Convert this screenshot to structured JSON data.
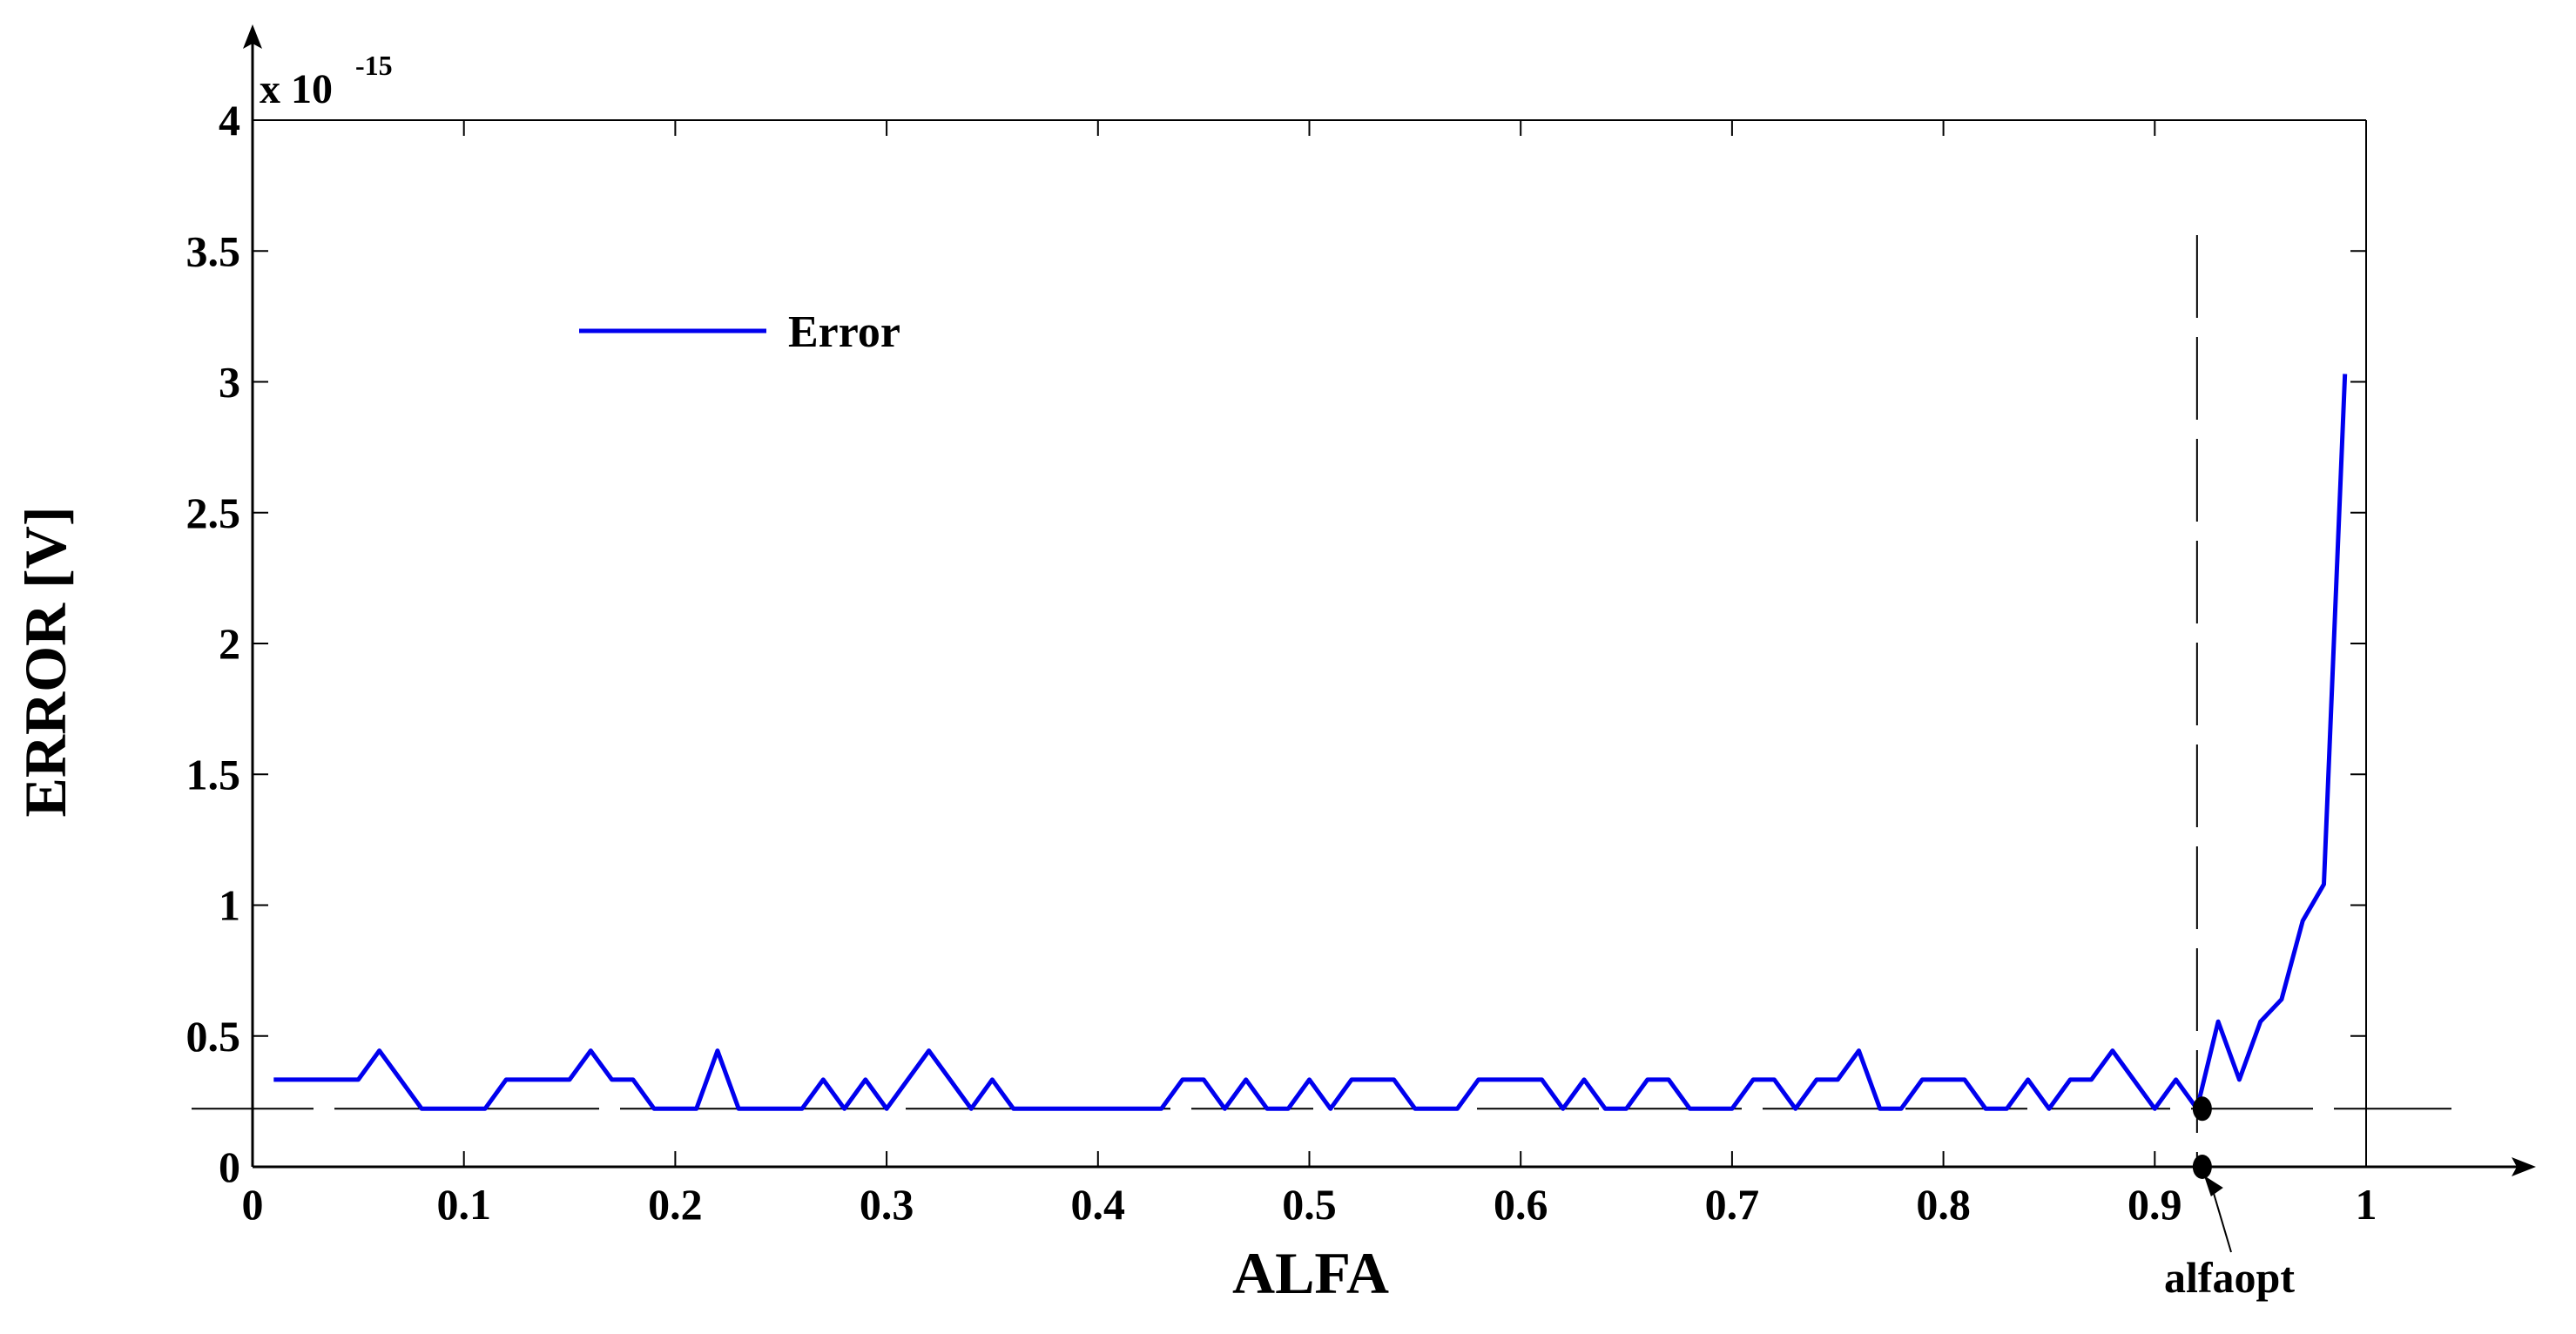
{
  "chart_data": {
    "type": "line",
    "xlabel": "ALFA",
    "ylabel": "ERROR [V]",
    "xlim": [
      0,
      1
    ],
    "ylim": [
      0,
      4
    ],
    "y_multiplier_label": "x 10",
    "y_multiplier_exponent": "-15",
    "xticks": [
      0,
      0.1,
      0.2,
      0.3,
      0.4,
      0.5,
      0.6,
      0.7,
      0.8,
      0.9,
      1
    ],
    "xtick_labels": [
      "0",
      "0.1",
      "0.2",
      "0.3",
      "0.4",
      "0.5",
      "0.6",
      "0.7",
      "0.8",
      "0.9",
      "1"
    ],
    "yticks": [
      0,
      0.5,
      1,
      1.5,
      2,
      2.5,
      3,
      3.5,
      4
    ],
    "ytick_labels": [
      "0",
      "0.5",
      "1",
      "1.5",
      "2",
      "2.5",
      "3",
      "3.5",
      "4"
    ],
    "legend_position": "upper-left",
    "grid": false,
    "series": [
      {
        "name": "Error",
        "color": "#0000ee",
        "x": [
          0.01,
          0.02,
          0.03,
          0.04,
          0.05,
          0.06,
          0.07,
          0.08,
          0.09,
          0.1,
          0.11,
          0.12,
          0.13,
          0.14,
          0.15,
          0.16,
          0.17,
          0.18,
          0.19,
          0.2,
          0.21,
          0.22,
          0.23,
          0.24,
          0.25,
          0.26,
          0.27,
          0.28,
          0.29,
          0.3,
          0.31,
          0.32,
          0.33,
          0.34,
          0.35,
          0.36,
          0.37,
          0.38,
          0.39,
          0.4,
          0.41,
          0.42,
          0.43,
          0.44,
          0.45,
          0.46,
          0.47,
          0.48,
          0.49,
          0.5,
          0.51,
          0.52,
          0.53,
          0.54,
          0.55,
          0.56,
          0.57,
          0.58,
          0.59,
          0.6,
          0.61,
          0.62,
          0.63,
          0.64,
          0.65,
          0.66,
          0.67,
          0.68,
          0.69,
          0.7,
          0.71,
          0.72,
          0.73,
          0.74,
          0.75,
          0.76,
          0.77,
          0.78,
          0.79,
          0.8,
          0.81,
          0.82,
          0.83,
          0.84,
          0.85,
          0.86,
          0.87,
          0.88,
          0.89,
          0.9,
          0.91,
          0.92,
          0.93,
          0.94,
          0.95,
          0.96,
          0.97,
          0.98,
          0.99
        ],
        "y": [
          0.333,
          0.333,
          0.333,
          0.333,
          0.333,
          0.444,
          0.333,
          0.222,
          0.222,
          0.222,
          0.222,
          0.333,
          0.333,
          0.333,
          0.333,
          0.444,
          0.333,
          0.333,
          0.222,
          0.222,
          0.222,
          0.444,
          0.222,
          0.222,
          0.222,
          0.222,
          0.333,
          0.222,
          0.333,
          0.222,
          0.333,
          0.444,
          0.333,
          0.222,
          0.333,
          0.222,
          0.222,
          0.222,
          0.222,
          0.222,
          0.222,
          0.222,
          0.222,
          0.333,
          0.333,
          0.222,
          0.333,
          0.222,
          0.222,
          0.333,
          0.222,
          0.333,
          0.333,
          0.333,
          0.222,
          0.222,
          0.222,
          0.333,
          0.333,
          0.333,
          0.333,
          0.222,
          0.333,
          0.222,
          0.222,
          0.333,
          0.333,
          0.222,
          0.222,
          0.222,
          0.333,
          0.333,
          0.222,
          0.333,
          0.333,
          0.444,
          0.222,
          0.222,
          0.333,
          0.333,
          0.333,
          0.222,
          0.222,
          0.333,
          0.222,
          0.333,
          0.333,
          0.444,
          0.333,
          0.222,
          0.333,
          0.222,
          0.555,
          0.333,
          0.555,
          0.64,
          0.94,
          1.08,
          3.03
        ]
      }
    ],
    "reference_lines": [
      {
        "orientation": "vertical",
        "value": 0.92,
        "style": "dashed",
        "color": "#000000"
      },
      {
        "orientation": "horizontal",
        "value": 0.222,
        "style": "dashed",
        "color": "#000000"
      }
    ],
    "markers": [
      {
        "x": 0.92,
        "y": 0.222
      },
      {
        "x": 0.92,
        "y": 0
      }
    ],
    "annotation": {
      "text": "alfaopt",
      "points_to_x": 0.92
    }
  }
}
